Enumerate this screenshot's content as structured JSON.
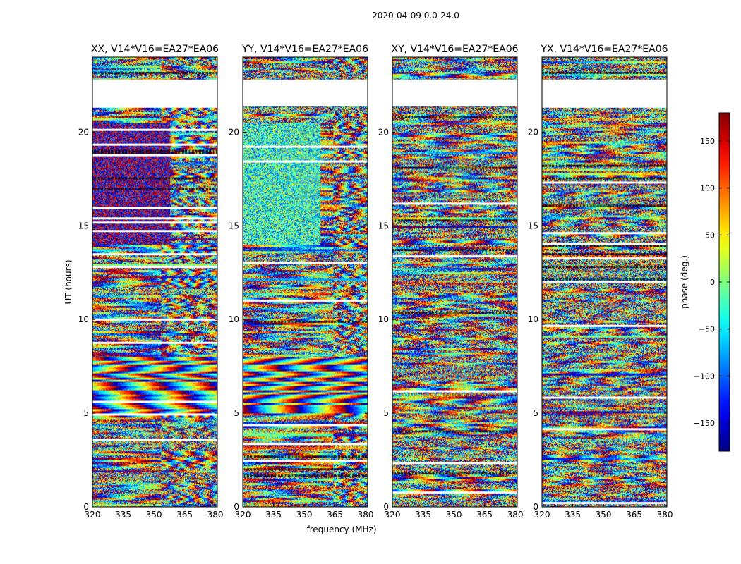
{
  "chart_data": {
    "type": "heatmap",
    "title": "2020-04-09 0.0-24.0",
    "xlabel": "frequency (MHz)",
    "ylabel": "UT (hours)",
    "xlim": [
      320,
      381
    ],
    "ylim": [
      0,
      24
    ],
    "xticks": [
      "320",
      "335",
      "350",
      "365",
      "380"
    ],
    "xtick_values": [
      320,
      335,
      350,
      365,
      380
    ],
    "yticks": [
      "0",
      "5",
      "10",
      "15",
      "20"
    ],
    "ytick_values": [
      0,
      5,
      10,
      15,
      20
    ],
    "panels": [
      {
        "title": "XX, V14*V16=EA27*EA06",
        "style": "xx"
      },
      {
        "title": "YY, V14*V16=EA27*EA06",
        "style": "yy"
      },
      {
        "title": "XY, V14*V16=EA27*EA06",
        "style": "cross"
      },
      {
        "title": "YX, V14*V16=EA27*EA06",
        "style": "cross"
      }
    ],
    "flagged_ut_ranges": [
      [
        22.8,
        21.4
      ]
    ],
    "colorbar": {
      "label": "phase (deg.)",
      "range": [
        -180,
        180
      ],
      "ticks": [
        "150",
        "100",
        "50",
        "0",
        "−50",
        "−100",
        "−150"
      ],
      "tick_values": [
        150,
        100,
        50,
        0,
        -50,
        -100,
        -150
      ],
      "cmap": "jet"
    }
  }
}
